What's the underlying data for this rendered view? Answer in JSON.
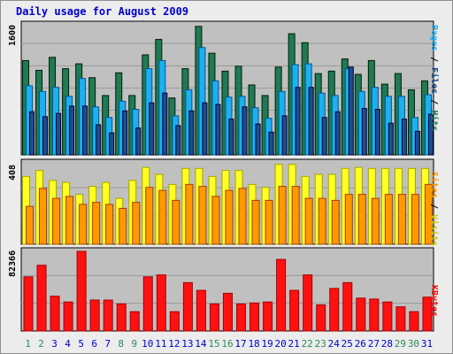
{
  "title": "Daily usage for August 2009",
  "colors": {
    "hits": "#1f7a55",
    "files": "#1cb0f0",
    "pages": "#1a4f8f",
    "visits": "#ffff22",
    "sites": "#ff9900",
    "kbytes": "#ff1111",
    "weekend_day": "#2e8b57",
    "weekday_day": "#0000cc",
    "plot_bg": "#c0c0c0",
    "frame_bg": "#ececec"
  },
  "axis_labels": {
    "top_max": "1600",
    "mid_max": "408",
    "bottom_max": "82366",
    "top_pages": "Pages",
    "top_files": "Files",
    "top_hits": "Hits",
    "mid_sites": "Sites",
    "mid_visits": "Visits",
    "bottom_kbytes": "KBytes",
    "slash": " / "
  },
  "chart_data": [
    {
      "type": "bar",
      "categories": [
        "1",
        "2",
        "3",
        "4",
        "5",
        "6",
        "7",
        "8",
        "9",
        "10",
        "11",
        "12",
        "13",
        "14",
        "15",
        "16",
        "17",
        "18",
        "19",
        "20",
        "21",
        "22",
        "23",
        "24",
        "25",
        "26",
        "27",
        "28",
        "29",
        "30",
        "31"
      ],
      "weekend_days": [
        "1",
        "2",
        "8",
        "9",
        "15",
        "16",
        "22",
        "23",
        "29",
        "30"
      ],
      "series": [
        {
          "name": "Hits",
          "values": [
            1160,
            1040,
            1200,
            1060,
            1120,
            950,
            730,
            1010,
            730,
            1230,
            1420,
            700,
            1060,
            1580,
            1250,
            1030,
            1090,
            860,
            730,
            1080,
            1490,
            1380,
            1000,
            1030,
            1180,
            990,
            1160,
            870,
            1000,
            800,
            910
          ]
        },
        {
          "name": "Files",
          "values": [
            850,
            780,
            830,
            720,
            940,
            590,
            460,
            660,
            560,
            1060,
            1160,
            480,
            800,
            1320,
            910,
            710,
            720,
            580,
            450,
            780,
            1110,
            1120,
            760,
            730,
            1060,
            780,
            830,
            720,
            720,
            460,
            740
          ]
        },
        {
          "name": "Pages",
          "values": [
            530,
            470,
            510,
            600,
            600,
            370,
            270,
            540,
            330,
            640,
            760,
            360,
            540,
            640,
            620,
            440,
            590,
            380,
            280,
            480,
            830,
            830,
            460,
            530,
            1080,
            570,
            560,
            390,
            440,
            290,
            500
          ]
        }
      ],
      "ylim": [
        0,
        1600
      ]
    },
    {
      "type": "bar",
      "categories": [
        "1",
        "2",
        "3",
        "4",
        "5",
        "6",
        "7",
        "8",
        "9",
        "10",
        "11",
        "12",
        "13",
        "14",
        "15",
        "16",
        "17",
        "18",
        "19",
        "20",
        "21",
        "22",
        "23",
        "24",
        "25",
        "26",
        "27",
        "28",
        "29",
        "30",
        "31"
      ],
      "series": [
        {
          "name": "Visits",
          "values": [
            340,
            370,
            320,
            310,
            250,
            290,
            310,
            230,
            320,
            385,
            350,
            300,
            380,
            380,
            340,
            370,
            370,
            300,
            285,
            400,
            400,
            340,
            350,
            350,
            380,
            385,
            380,
            380,
            380,
            380,
            380
          ]
        },
        {
          "name": "Sites",
          "values": [
            190,
            280,
            230,
            240,
            200,
            210,
            200,
            180,
            210,
            285,
            270,
            220,
            300,
            290,
            240,
            270,
            280,
            220,
            220,
            290,
            290,
            230,
            230,
            220,
            250,
            250,
            230,
            250,
            250,
            250,
            300
          ]
        }
      ],
      "ylim": [
        0,
        408
      ]
    },
    {
      "type": "bar",
      "categories": [
        "1",
        "2",
        "3",
        "4",
        "5",
        "6",
        "7",
        "8",
        "9",
        "10",
        "11",
        "12",
        "13",
        "14",
        "15",
        "16",
        "17",
        "18",
        "19",
        "20",
        "21",
        "22",
        "23",
        "24",
        "25",
        "26",
        "27",
        "28",
        "29",
        "30",
        "31"
      ],
      "series": [
        {
          "name": "KBytes",
          "values": [
            56000,
            68000,
            36000,
            30000,
            82366,
            32000,
            32000,
            28000,
            20000,
            56000,
            58000,
            20000,
            50000,
            42000,
            28000,
            39000,
            28000,
            29000,
            30000,
            74000,
            42000,
            58000,
            27000,
            44000,
            50000,
            34000,
            33000,
            30000,
            25000,
            20000,
            35000
          ]
        }
      ],
      "ylim": [
        0,
        82366
      ]
    }
  ]
}
